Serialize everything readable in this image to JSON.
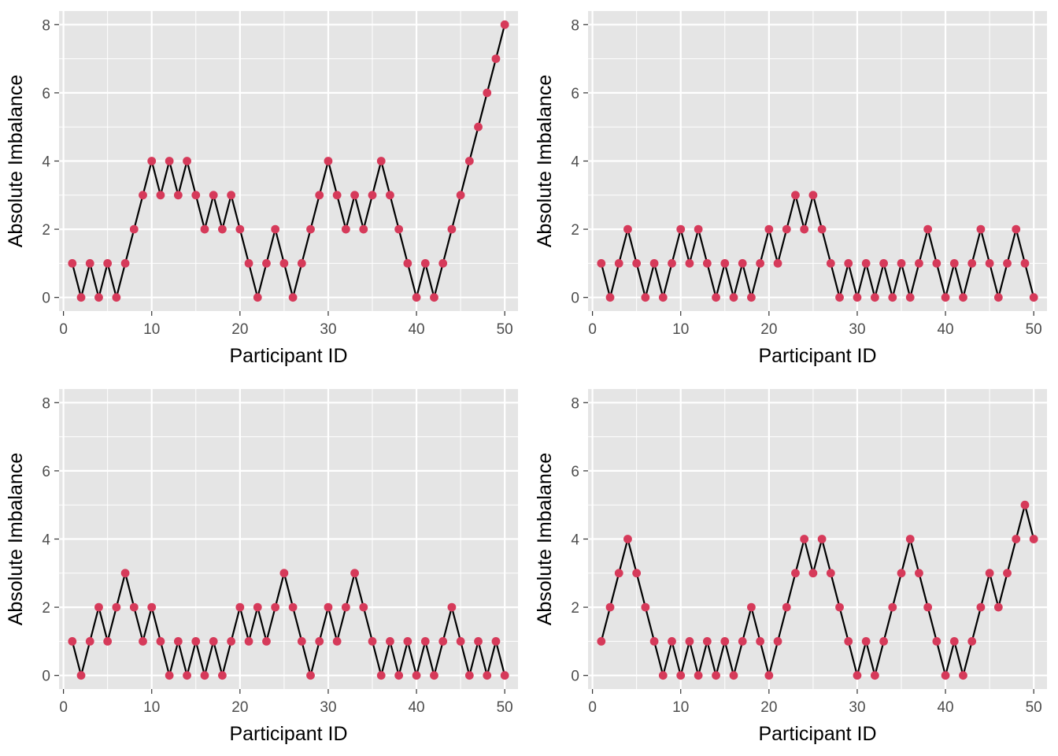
{
  "chart_data": [
    {
      "type": "line",
      "xlabel": "Participant ID",
      "ylabel": "Absolute Imbalance",
      "xlim": [
        -0.5,
        51.5
      ],
      "ylim": [
        -0.4,
        8.4
      ],
      "xticks": [
        0,
        10,
        20,
        30,
        40,
        50
      ],
      "yticks": [
        0,
        2,
        4,
        6,
        8
      ],
      "grid": true,
      "x": [
        1,
        2,
        3,
        4,
        5,
        6,
        7,
        8,
        9,
        10,
        11,
        12,
        13,
        14,
        15,
        16,
        17,
        18,
        19,
        20,
        21,
        22,
        23,
        24,
        25,
        26,
        27,
        28,
        29,
        30,
        31,
        32,
        33,
        34,
        35,
        36,
        37,
        38,
        39,
        40,
        41,
        42,
        43,
        44,
        45,
        46,
        47,
        48,
        49,
        50
      ],
      "series": [
        {
          "values": [
            1,
            0,
            1,
            0,
            1,
            0,
            1,
            2,
            3,
            4,
            3,
            4,
            3,
            4,
            3,
            2,
            3,
            2,
            3,
            2,
            1,
            0,
            1,
            2,
            1,
            0,
            1,
            2,
            3,
            4,
            3,
            2,
            3,
            2,
            3,
            4,
            3,
            2,
            1,
            0,
            1,
            0,
            1,
            2,
            3,
            4,
            5,
            6,
            7,
            8
          ]
        }
      ]
    },
    {
      "type": "line",
      "xlabel": "Participant ID",
      "ylabel": "Absolute Imbalance",
      "xlim": [
        -0.5,
        51.5
      ],
      "ylim": [
        -0.4,
        8.4
      ],
      "xticks": [
        0,
        10,
        20,
        30,
        40,
        50
      ],
      "yticks": [
        0,
        2,
        4,
        6,
        8
      ],
      "grid": true,
      "x": [
        1,
        2,
        3,
        4,
        5,
        6,
        7,
        8,
        9,
        10,
        11,
        12,
        13,
        14,
        15,
        16,
        17,
        18,
        19,
        20,
        21,
        22,
        23,
        24,
        25,
        26,
        27,
        28,
        29,
        30,
        31,
        32,
        33,
        34,
        35,
        36,
        37,
        38,
        39,
        40,
        41,
        42,
        43,
        44,
        45,
        46,
        47,
        48,
        49,
        50
      ],
      "series": [
        {
          "values": [
            1,
            0,
            1,
            2,
            1,
            0,
            1,
            0,
            1,
            2,
            1,
            2,
            1,
            0,
            1,
            0,
            1,
            0,
            1,
            2,
            1,
            2,
            3,
            2,
            3,
            2,
            1,
            0,
            1,
            0,
            1,
            0,
            1,
            0,
            1,
            0,
            1,
            2,
            1,
            0,
            1,
            0,
            1,
            2,
            1,
            0,
            1,
            2,
            1,
            0
          ]
        }
      ]
    },
    {
      "type": "line",
      "xlabel": "Participant ID",
      "ylabel": "Absolute Imbalance",
      "xlim": [
        -0.5,
        51.5
      ],
      "ylim": [
        -0.4,
        8.4
      ],
      "xticks": [
        0,
        10,
        20,
        30,
        40,
        50
      ],
      "yticks": [
        0,
        2,
        4,
        6,
        8
      ],
      "grid": true,
      "x": [
        1,
        2,
        3,
        4,
        5,
        6,
        7,
        8,
        9,
        10,
        11,
        12,
        13,
        14,
        15,
        16,
        17,
        18,
        19,
        20,
        21,
        22,
        23,
        24,
        25,
        26,
        27,
        28,
        29,
        30,
        31,
        32,
        33,
        34,
        35,
        36,
        37,
        38,
        39,
        40,
        41,
        42,
        43,
        44,
        45,
        46,
        47,
        48,
        49,
        50
      ],
      "series": [
        {
          "values": [
            1,
            0,
            1,
            2,
            1,
            2,
            3,
            2,
            1,
            2,
            1,
            0,
            1,
            0,
            1,
            0,
            1,
            0,
            1,
            2,
            1,
            2,
            1,
            2,
            3,
            2,
            1,
            0,
            1,
            2,
            1,
            2,
            3,
            2,
            1,
            0,
            1,
            0,
            1,
            0,
            1,
            0,
            1,
            2,
            1,
            0,
            1,
            0,
            1,
            0
          ]
        }
      ]
    },
    {
      "type": "line",
      "xlabel": "Participant ID",
      "ylabel": "Absolute Imbalance",
      "xlim": [
        -0.5,
        51.5
      ],
      "ylim": [
        -0.4,
        8.4
      ],
      "xticks": [
        0,
        10,
        20,
        30,
        40,
        50
      ],
      "yticks": [
        0,
        2,
        4,
        6,
        8
      ],
      "grid": true,
      "x": [
        1,
        2,
        3,
        4,
        5,
        6,
        7,
        8,
        9,
        10,
        11,
        12,
        13,
        14,
        15,
        16,
        17,
        18,
        19,
        20,
        21,
        22,
        23,
        24,
        25,
        26,
        27,
        28,
        29,
        30,
        31,
        32,
        33,
        34,
        35,
        36,
        37,
        38,
        39,
        40,
        41,
        42,
        43,
        44,
        45,
        46,
        47,
        48,
        49,
        50
      ],
      "series": [
        {
          "values": [
            1,
            2,
            3,
            4,
            3,
            2,
            1,
            0,
            1,
            0,
            1,
            0,
            1,
            0,
            1,
            0,
            1,
            2,
            1,
            0,
            1,
            2,
            3,
            4,
            3,
            4,
            3,
            2,
            1,
            0,
            1,
            0,
            1,
            2,
            3,
            4,
            3,
            2,
            1,
            0,
            1,
            0,
            1,
            2,
            3,
            2,
            3,
            4,
            5,
            4
          ]
        }
      ]
    }
  ],
  "colors": {
    "panel_background": "#e5e5e5",
    "grid": "#ffffff",
    "line": "#000000",
    "point": "#d63a5a",
    "tick_label": "#4d4d4d",
    "axis_title": "#000000"
  }
}
